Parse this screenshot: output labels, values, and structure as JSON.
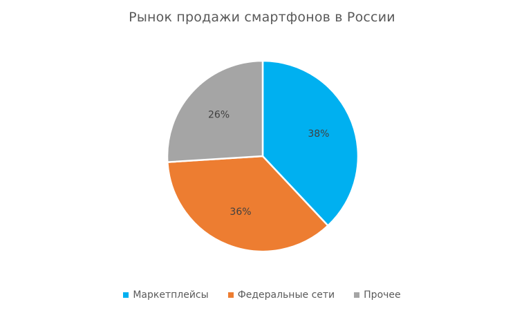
{
  "chart_data": {
    "type": "pie",
    "title": "Рынок продажи смартфонов в России",
    "categories": [
      "Маркетплейсы",
      "Федеральные сети",
      "Прочее"
    ],
    "values": [
      38,
      36,
      26
    ],
    "labels": [
      "38%",
      "36%",
      "26%"
    ],
    "colors": [
      "#00B0F0",
      "#ED7D31",
      "#A5A5A5"
    ],
    "legend_position": "bottom",
    "start_angle": "12 o'clock",
    "direction": "clockwise"
  }
}
